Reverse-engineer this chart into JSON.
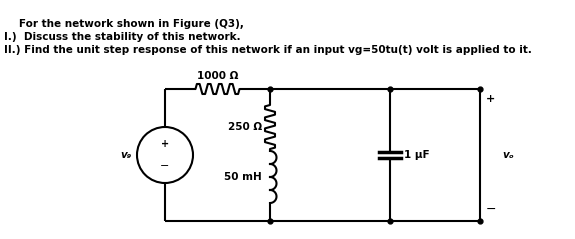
{
  "title_line1": "   For the network shown in Figure (Q3),",
  "title_line2": "I.)  Discuss the stability of this network.",
  "title_line3": "II.) Find the unit step response of this network if an input vg=50tu(t) volt is applied to it.",
  "r1_label": "1000 Ω",
  "r2_label": "250 Ω",
  "l_label": "50 mH",
  "c_label": "1 μF",
  "vg_label": "v₉",
  "vo_label": "vₒ",
  "bg_color": "#ffffff",
  "lw": 1.5,
  "font_size_text": 7.5,
  "font_size_label": 7.5
}
